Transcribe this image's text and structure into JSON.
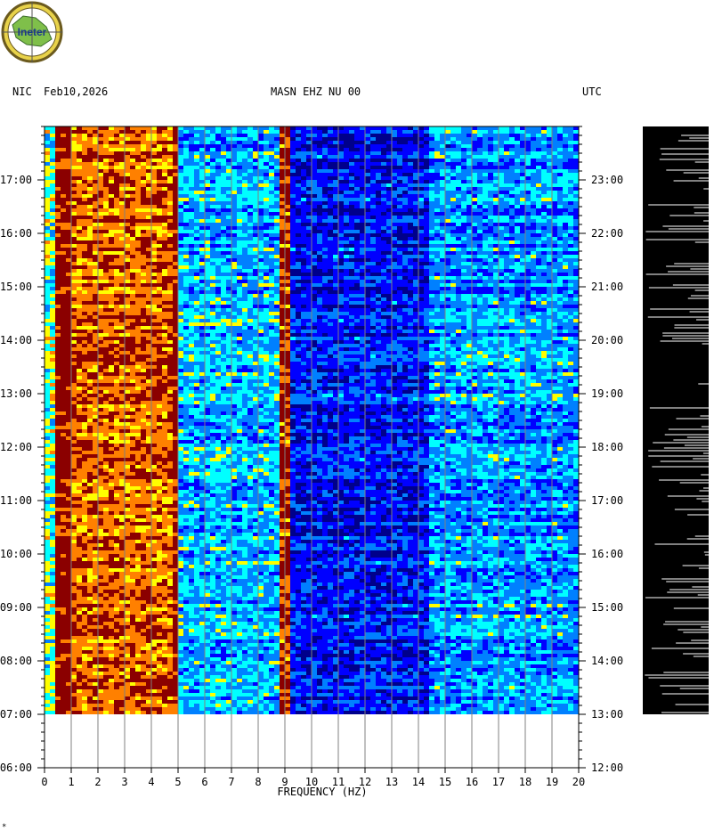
{
  "header": {
    "station": "NIC",
    "date": "Feb10,2026",
    "channel": "MASN EHZ NU 00",
    "tz_right": "UTC"
  },
  "logo": {
    "text": "Ineter",
    "name": "ineter-logo"
  },
  "chart_data": {
    "type": "heatmap",
    "title": "MASN EHZ NU 00",
    "xlabel": "FREQUENCY (HZ)",
    "ylabel": "",
    "x_ticks": [
      0,
      1,
      2,
      3,
      4,
      5,
      6,
      7,
      8,
      9,
      10,
      11,
      12,
      13,
      14,
      15,
      16,
      17,
      18,
      19,
      20
    ],
    "xlim": [
      0,
      20
    ],
    "left_time_labels": [
      "17:00",
      "16:00",
      "15:00",
      "14:00",
      "13:00",
      "12:00",
      "11:00",
      "10:00",
      "09:00",
      "08:00",
      "07:00",
      "06:00"
    ],
    "right_time_labels": [
      "23:00",
      "22:00",
      "21:00",
      "20:00",
      "19:00",
      "18:00",
      "17:00",
      "16:00",
      "15:00",
      "14:00",
      "13:00",
      "12:00"
    ],
    "left_time_range": [
      "06:00",
      "17:59"
    ],
    "right_time_range": [
      "12:00",
      "23:59"
    ],
    "data_start": "07:00",
    "data_end": "17:59",
    "colormap": [
      "#00008b",
      "#0000ff",
      "#0080ff",
      "#00ffff",
      "#ffff00",
      "#ff8000",
      "#8b0000"
    ],
    "bands": [
      {
        "f0": 0.0,
        "f1": 0.4,
        "level": 0.55
      },
      {
        "f0": 0.4,
        "f1": 1.0,
        "level": 0.98
      },
      {
        "f0": 1.0,
        "f1": 4.9,
        "level": 0.82
      },
      {
        "f0": 4.9,
        "f1": 5.0,
        "level": 0.95
      },
      {
        "f0": 5.0,
        "f1": 8.8,
        "level": 0.42
      },
      {
        "f0": 8.8,
        "f1": 9.2,
        "level": 0.9
      },
      {
        "f0": 9.2,
        "f1": 14.5,
        "level": 0.22
      },
      {
        "f0": 14.5,
        "f1": 20.0,
        "level": 0.38
      }
    ],
    "amplitude_trace": "present"
  }
}
